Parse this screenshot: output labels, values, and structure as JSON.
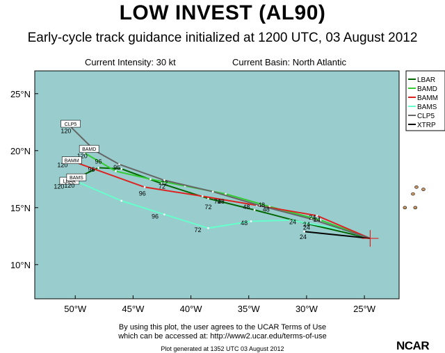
{
  "header": {
    "title": "LOW INVEST (AL90)",
    "subtitle": "Early-cycle track guidance initialized at 1200 UTC, 03 August 2012",
    "intensity": "Current Intensity: 30 kt",
    "basin": "Current Basin: North Atlantic"
  },
  "colors": {
    "ocean": "#99cccc",
    "land": "#cc9966",
    "frame": "#000000"
  },
  "axes": {
    "lon_ticks": [
      "50°W",
      "45°W",
      "40°W",
      "35°W",
      "30°W",
      "25°W"
    ],
    "lat_ticks": [
      "25°N",
      "20°N",
      "15°N",
      "10°N"
    ]
  },
  "chart_data": {
    "type": "map",
    "lon_range": [
      -53.5,
      -22
    ],
    "lat_range": [
      7,
      27
    ],
    "current_position": {
      "lon": -24.5,
      "lat": 12.3
    },
    "series": [
      {
        "name": "LBAR",
        "color": "#006600",
        "points": [
          [
            -24.5,
            12.3
          ],
          [
            -30,
            13.6
          ],
          [
            -34.5,
            14.8
          ],
          [
            -38.5,
            15.8
          ],
          [
            -42.5,
            17.1
          ],
          [
            -46,
            18.4
          ],
          [
            -48,
            18.5
          ],
          [
            -50.5,
            17.3
          ]
        ],
        "labels": [
          [
            "24",
            -30,
            13.6
          ],
          [
            "48",
            -37.4,
            15.6
          ],
          [
            "72",
            -42.3,
            17.2
          ],
          [
            "96",
            -48.6,
            18.4
          ],
          [
            "120",
            -51.4,
            16.9
          ]
        ],
        "tag": "LBAR",
        "tag_pos": [
          -50.5,
          17.3
        ]
      },
      {
        "name": "BAMD",
        "color": "#33cc33",
        "points": [
          [
            -24.5,
            12.3
          ],
          [
            -28.8,
            13.9
          ],
          [
            -33.2,
            15.1
          ],
          [
            -37,
            16.2
          ],
          [
            -40.5,
            16.9
          ],
          [
            -43.5,
            17.5
          ],
          [
            -46.5,
            18.2
          ],
          [
            -49.2,
            19.8
          ]
        ],
        "labels": [
          [
            "24",
            -29.1,
            14.0
          ],
          [
            "48",
            -33.5,
            14.9
          ],
          [
            "72",
            -37.7,
            15.6
          ],
          [
            "96",
            -48.0,
            19.1
          ],
          [
            "120",
            -49.4,
            19.6
          ]
        ],
        "tag": "BAMD",
        "tag_pos": [
          -48.8,
          20.1
        ]
      },
      {
        "name": "BAMM",
        "color": "#dd2222",
        "points": [
          [
            -24.5,
            12.3
          ],
          [
            -29.1,
            14.3
          ],
          [
            -34.3,
            15.2
          ],
          [
            -39,
            16
          ],
          [
            -44,
            16.8
          ],
          [
            -50.3,
            19.1
          ]
        ],
        "labels": [
          [
            "24",
            -30,
            13.3
          ],
          [
            "48",
            -35.2,
            15.1
          ],
          [
            "72",
            -38.5,
            15.1
          ],
          [
            "96",
            -44.2,
            16.3
          ],
          [
            "120",
            -51.1,
            18.8
          ]
        ],
        "tag": "BAMM",
        "tag_pos": [
          -50.3,
          19.1
        ]
      },
      {
        "name": "BAMS",
        "color": "#66ffcc",
        "points": [
          [
            -24.5,
            12.3
          ],
          [
            -27,
            13.1
          ],
          [
            -31.4,
            13.9
          ],
          [
            -34.8,
            13.8
          ],
          [
            -38.5,
            13.2
          ],
          [
            -42.3,
            14.4
          ],
          [
            -46,
            15.6
          ],
          [
            -49.9,
            17.3
          ]
        ],
        "labels": [
          [
            "24",
            -31.2,
            13.8
          ],
          [
            "48",
            -35.4,
            13.7
          ],
          [
            "72",
            -39.4,
            13.1
          ],
          [
            "96",
            -43.1,
            14.3
          ],
          [
            "120",
            -50.5,
            17.0
          ]
        ],
        "tag": "BAMS",
        "tag_pos": [
          -49.9,
          17.6
        ]
      },
      {
        "name": "CLP5",
        "color": "#666666",
        "points": [
          [
            -24.5,
            12.3
          ],
          [
            -29.6,
            14
          ],
          [
            -34.1,
            15.2
          ],
          [
            -38.1,
            16.4
          ],
          [
            -42.3,
            17.4
          ],
          [
            -46.2,
            18.8
          ],
          [
            -48.3,
            20
          ],
          [
            -50.4,
            22.1
          ]
        ],
        "labels": [
          [
            "24",
            -29.5,
            14.2
          ],
          [
            "48",
            -33.9,
            15.3
          ],
          [
            "72",
            -42.5,
            16.9
          ],
          [
            "96",
            -46.4,
            18.6
          ],
          [
            "120",
            -50.8,
            21.8
          ]
        ],
        "tag": "CLP5",
        "tag_pos": [
          -50.4,
          22.3
        ]
      },
      {
        "name": "XTRP",
        "color": "#000000",
        "points": [
          [
            -24.5,
            12.3
          ],
          [
            -30.2,
            12.9
          ]
        ],
        "labels": [
          [
            "24",
            -30.3,
            12.5
          ]
        ],
        "tag": "",
        "tag_pos": null
      }
    ],
    "islands": [
      [
        -20.8,
        16.2
      ],
      [
        -19.9,
        16.6
      ],
      [
        -21.5,
        15.0
      ],
      [
        -20.6,
        15.0
      ],
      [
        -20.5,
        16.8
      ]
    ],
    "grid": false,
    "legend": "top-right"
  },
  "footer": {
    "line1": "By using this plot, the user agrees to the UCAR Terms of Use",
    "line2": "which can be accessed at: http://www2.ucar.edu/terms-of-use",
    "line3": "Plot generated at 1352 UTC   03 August 2012",
    "logo": "NCAR"
  }
}
